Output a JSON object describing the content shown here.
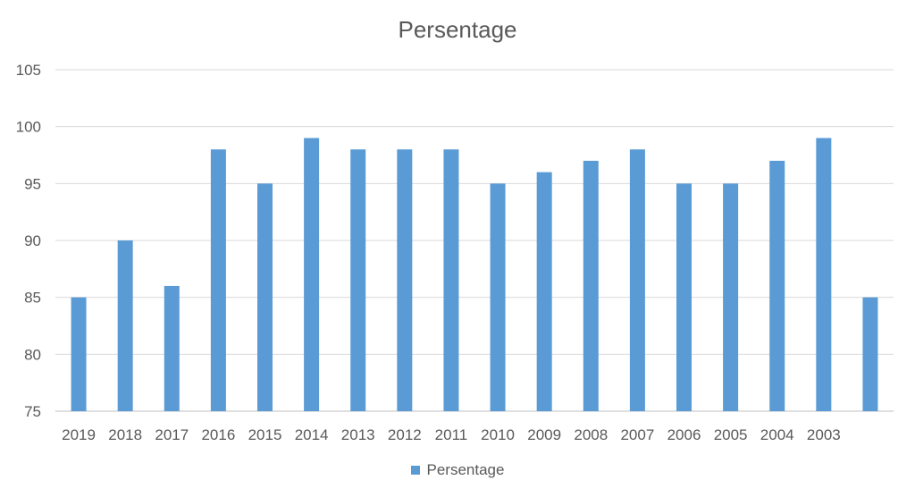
{
  "chart_data": {
    "type": "bar",
    "title": "Persentage",
    "xlabel": "",
    "ylabel": "",
    "ylim": [
      75,
      105
    ],
    "yticks": [
      75,
      80,
      85,
      90,
      95,
      100,
      105
    ],
    "grid": true,
    "legend_position": "bottom",
    "categories": [
      "2019",
      "2018",
      "2017",
      "2016",
      "2015",
      "2014",
      "2013",
      "2012",
      "2011",
      "2010",
      "2009",
      "2008",
      "2007",
      "2006",
      "2005",
      "2004",
      "2003",
      ""
    ],
    "series": [
      {
        "name": "Persentage",
        "color": "#5B9BD5",
        "values": [
          85,
          90,
          86,
          98,
          95,
          99,
          98,
          98,
          98,
          95,
          96,
          97,
          98,
          95,
          95,
          97,
          99,
          85
        ]
      }
    ]
  }
}
